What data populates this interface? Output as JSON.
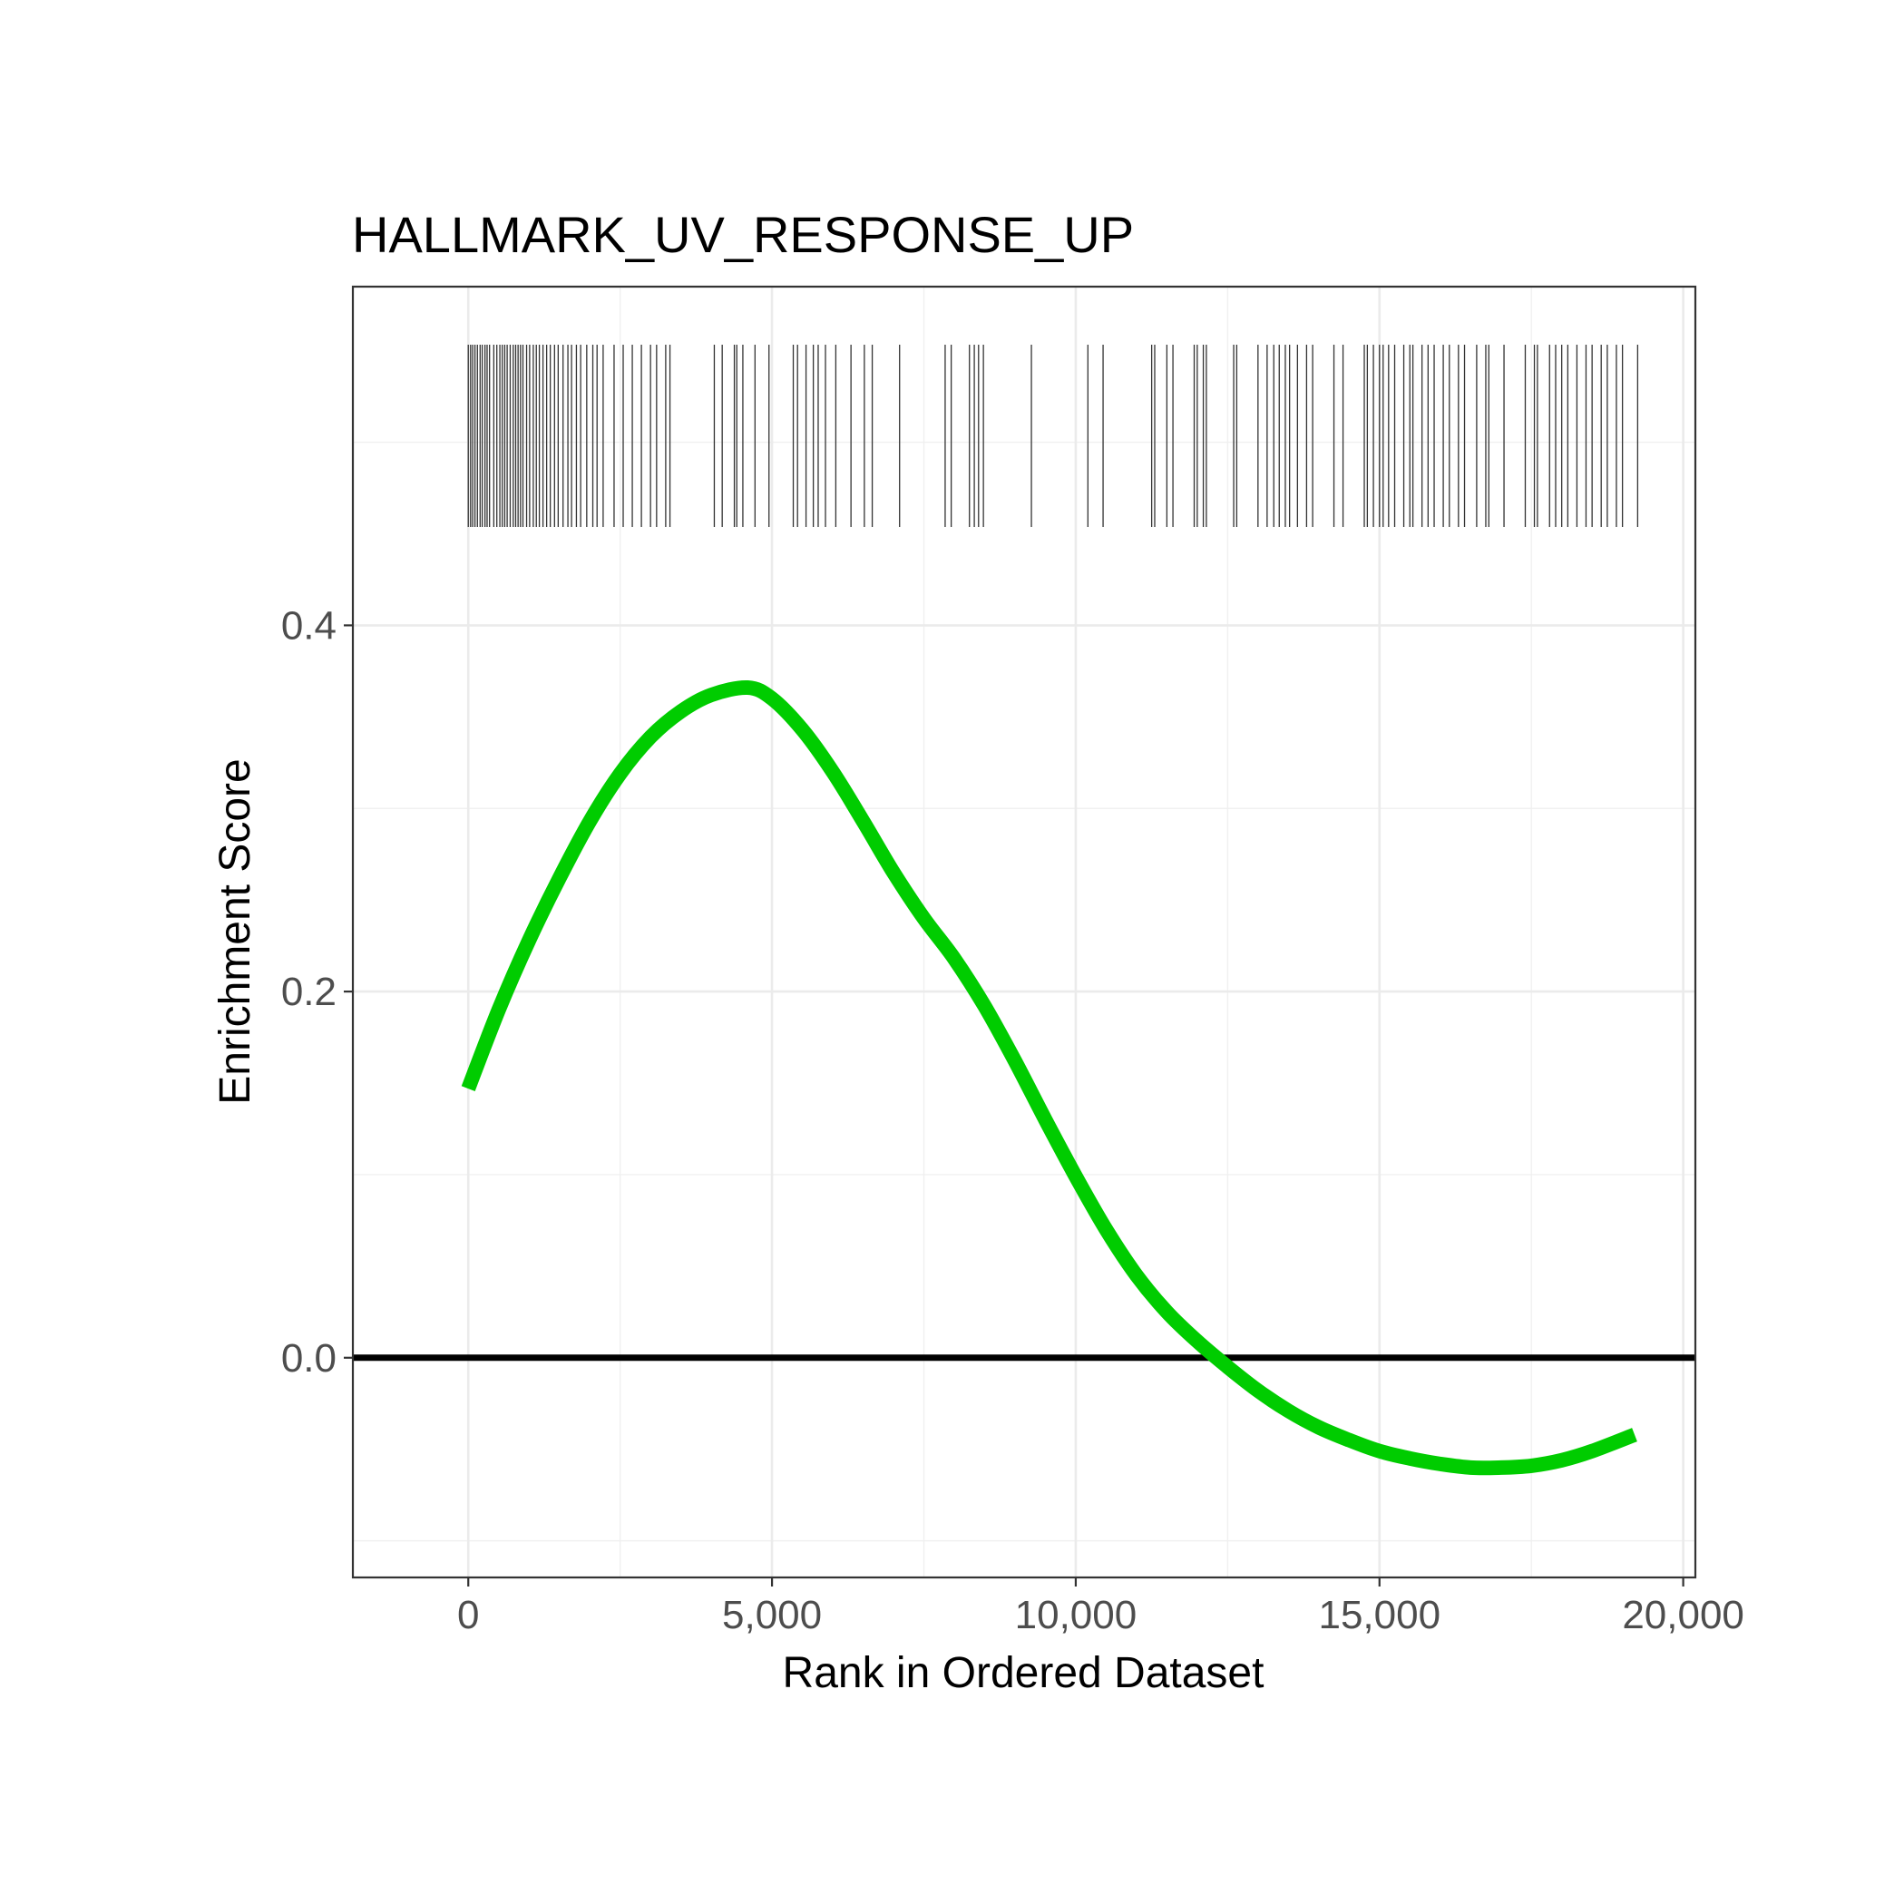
{
  "chart_data": {
    "type": "line",
    "title": "HALLMARK_UV_RESPONSE_UP",
    "xlabel": "Rank in Ordered Dataset",
    "ylabel": "Enrichment Score",
    "xlim": [
      -1900,
      20200
    ],
    "ylim": [
      -0.12,
      0.585
    ],
    "x_ticks": [
      0,
      5000,
      10000,
      15000,
      20000
    ],
    "x_tick_labels": [
      "0",
      "5,000",
      "10,000",
      "15,000",
      "20,000"
    ],
    "y_ticks": [
      0.0,
      0.2,
      0.4
    ],
    "y_tick_labels": [
      "0.0",
      "0.2",
      "0.4"
    ],
    "grid": true,
    "zero_line": 0,
    "series": [
      {
        "color": "#00cc00",
        "x": [
          0,
          500,
          1000,
          1500,
          2000,
          2500,
          3000,
          3500,
          4000,
          4600,
          5000,
          5500,
          6000,
          6500,
          7000,
          7500,
          8000,
          8500,
          9000,
          9500,
          10000,
          10500,
          11000,
          11500,
          12000,
          12500,
          13000,
          13500,
          14000,
          14500,
          15000,
          15500,
          16000,
          16500,
          17000,
          17500,
          18000,
          18500,
          19200
        ],
        "y": [
          0.147,
          0.19,
          0.228,
          0.262,
          0.293,
          0.319,
          0.339,
          0.353,
          0.362,
          0.366,
          0.36,
          0.343,
          0.32,
          0.293,
          0.265,
          0.24,
          0.218,
          0.192,
          0.162,
          0.13,
          0.099,
          0.07,
          0.045,
          0.025,
          0.009,
          -0.005,
          -0.018,
          -0.029,
          -0.038,
          -0.045,
          -0.051,
          -0.055,
          -0.058,
          -0.06,
          -0.06,
          -0.059,
          -0.056,
          -0.051,
          -0.042
        ]
      }
    ],
    "hits": [
      0,
      38,
      72,
      110,
      150,
      195,
      230,
      275,
      310,
      350,
      420,
      470,
      520,
      560,
      600,
      640,
      690,
      740,
      780,
      820,
      860,
      900,
      960,
      1010,
      1070,
      1120,
      1170,
      1230,
      1290,
      1350,
      1420,
      1480,
      1560,
      1640,
      1700,
      1780,
      1850,
      1950,
      2050,
      2120,
      2220,
      2400,
      2550,
      2700,
      2850,
      3000,
      3100,
      3250,
      3320,
      4050,
      4180,
      4380,
      4420,
      4520,
      4720,
      4950,
      5350,
      5420,
      5560,
      5680,
      5760,
      5880,
      6050,
      6300,
      6520,
      6650,
      7100,
      7850,
      7950,
      8250,
      8330,
      8400,
      8480,
      9270,
      10200,
      10450,
      11250,
      11300,
      11500,
      11600,
      11950,
      12000,
      12100,
      12150,
      12600,
      12650,
      13000,
      13150,
      13260,
      13350,
      13450,
      13520,
      13650,
      13800,
      13900,
      14250,
      14400,
      14750,
      14800,
      14900,
      15000,
      15060,
      15150,
      15250,
      15400,
      15500,
      15550,
      15700,
      15800,
      15900,
      16050,
      16150,
      16300,
      16400,
      16600,
      16750,
      16800,
      17050,
      17400,
      17550,
      17600,
      17800,
      17900,
      18000,
      18100,
      18250,
      18400,
      18500,
      18650,
      18750,
      18900,
      19000,
      19250
    ]
  }
}
